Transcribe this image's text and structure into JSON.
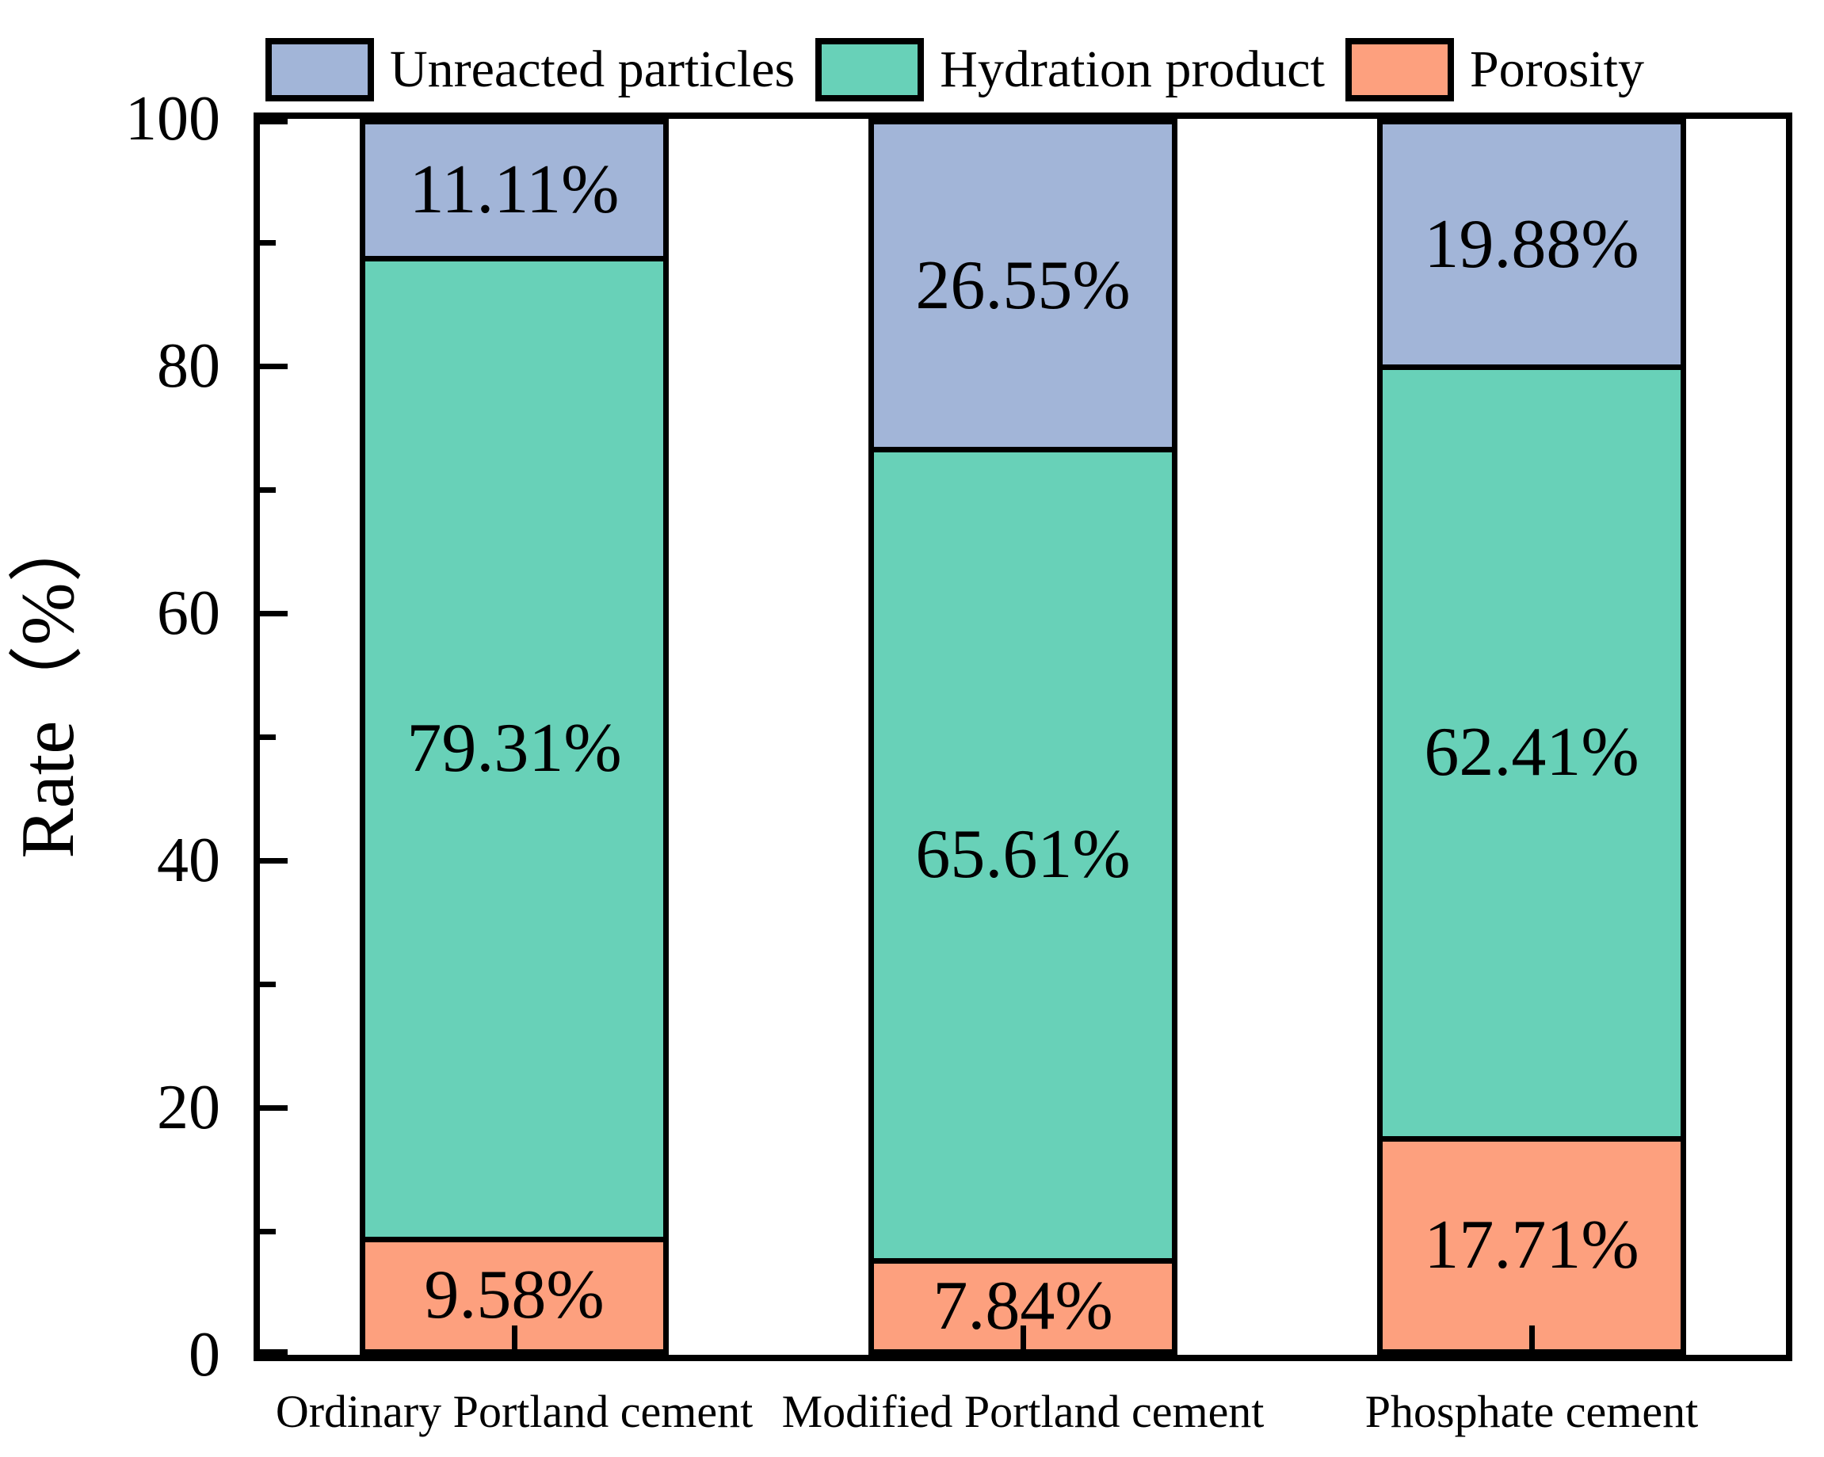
{
  "chart_data": {
    "type": "bar",
    "stacked": true,
    "orientation": "vertical",
    "title": "",
    "xlabel": "",
    "ylabel": "Rate（%）",
    "ylim": [
      0,
      100
    ],
    "yticks": [
      0,
      20,
      40,
      60,
      80,
      100
    ],
    "ytick_labels": [
      "0",
      "20",
      "40",
      "60",
      "80",
      "100"
    ],
    "minor_yticks": [
      10,
      30,
      50,
      70,
      90
    ],
    "grid": false,
    "legend_position": "top",
    "categories": [
      "Ordinary Portland cement",
      "Modified Portland cement",
      "Phosphate cement"
    ],
    "series": [
      {
        "name": "Unreacted particles",
        "color": "#a2b5d8",
        "values": [
          11.11,
          26.55,
          19.88
        ],
        "labels": [
          "11.11%",
          "26.55%",
          "19.88%"
        ]
      },
      {
        "name": "Hydration product",
        "color": "#68d1b8",
        "values": [
          79.31,
          65.61,
          62.41
        ],
        "labels": [
          "79.31%",
          "65.61%",
          "62.41%"
        ]
      },
      {
        "name": "Porosity",
        "color": "#fda07e",
        "values": [
          9.58,
          7.84,
          17.71
        ],
        "labels": [
          "9.58%",
          "7.84%",
          "17.71%"
        ]
      }
    ],
    "bar_outline_color": "#000000",
    "text_color": "#000000"
  }
}
